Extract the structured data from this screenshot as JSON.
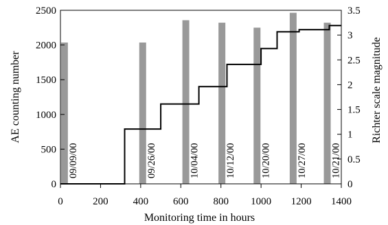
{
  "chart_data": {
    "type": "bar",
    "xlabel": "Monitoring  time in hours",
    "ylabel": "AE counting number",
    "y2label": "Richter scale magnitude",
    "xlim": [
      0,
      1400
    ],
    "ylim": [
      0,
      2500
    ],
    "y2lim": [
      0,
      3.5
    ],
    "x_ticks": [
      "0",
      "200",
      "400",
      "600",
      "800",
      "1000",
      "1200",
      "1400"
    ],
    "y_ticks": [
      "0",
      "500",
      "1000",
      "1500",
      "2000",
      "2500"
    ],
    "y2_ticks": [
      "0",
      "0.5",
      "1",
      "1.5",
      "2",
      "2.5",
      "3",
      "3.5"
    ],
    "grid": false,
    "series": [
      {
        "type": "bar",
        "axis": "right",
        "color": "#999999",
        "points": [
          {
            "x": 20,
            "y": 2.85,
            "date": "09/09/00"
          },
          {
            "x": 410,
            "y": 2.85,
            "date": "09/26/00"
          },
          {
            "x": 625,
            "y": 3.3,
            "date": "10/04/00"
          },
          {
            "x": 805,
            "y": 3.25,
            "date": "10/12/00"
          },
          {
            "x": 980,
            "y": 3.15,
            "date": "10/20/00"
          },
          {
            "x": 1160,
            "y": 3.45,
            "date": "10/27/00"
          },
          {
            "x": 1330,
            "y": 3.25,
            "date": "10/21/00"
          }
        ]
      },
      {
        "type": "step",
        "axis": "left",
        "color": "#000000",
        "x": [
          0,
          320,
          320,
          500,
          500,
          690,
          690,
          830,
          830,
          1000,
          1000,
          1080,
          1080,
          1190,
          1190,
          1340,
          1340,
          1400
        ],
        "y": [
          0,
          0,
          790,
          790,
          1150,
          1150,
          1400,
          1400,
          1720,
          1720,
          1950,
          1950,
          2190,
          2190,
          2220,
          2220,
          2280,
          2280
        ]
      }
    ]
  }
}
